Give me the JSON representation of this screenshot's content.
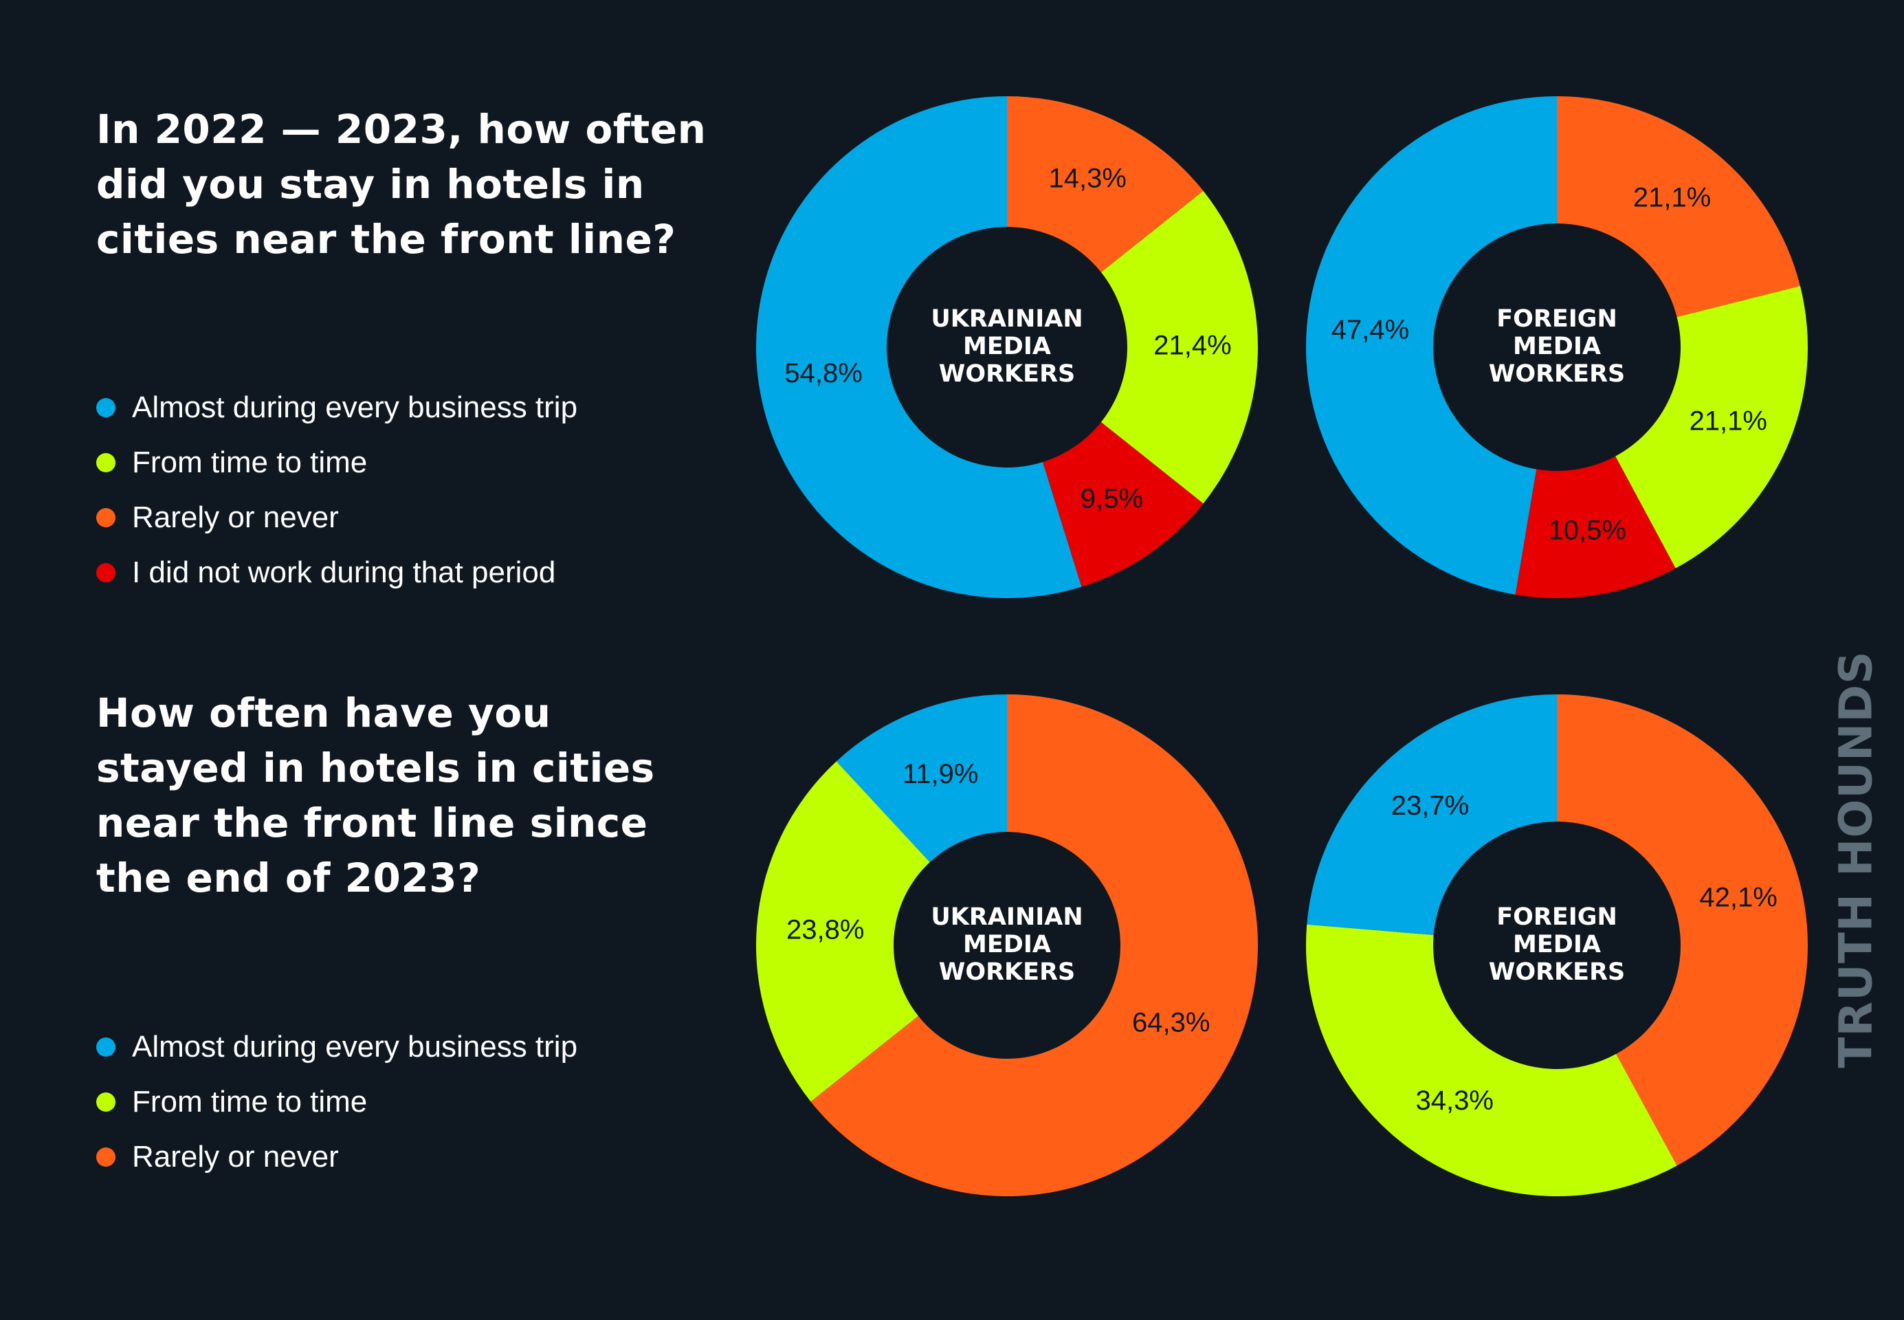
{
  "questions": [
    "In 2022 — 2023, how often did you stay in hotels in cities near the front line?",
    "How often have you stayed in hotels in cities near the front line since the end of 2023?"
  ],
  "legends": [
    [
      {
        "label": "Almost during every business trip",
        "color": "#00a8e6"
      },
      {
        "label": "From time to time",
        "color": "#bfff00"
      },
      {
        "label": "Rarely or never",
        "color": "#ff5f17"
      },
      {
        "label": "I did not work during that period",
        "color": "#e60000"
      }
    ],
    [
      {
        "label": "Almost during every business trip",
        "color": "#00a8e6"
      },
      {
        "label": "From time to time",
        "color": "#bfff00"
      },
      {
        "label": "Rarely or never",
        "color": "#ff5f17"
      }
    ]
  ],
  "brand": "TRUTH HOUNDS",
  "chart_data": [
    {
      "type": "pie",
      "donut": true,
      "center_label": [
        "UKRAINIAN",
        "MEDIA",
        "WORKERS"
      ],
      "slices": [
        {
          "category": "Rarely or never",
          "value": 14.3,
          "label": "14,3%",
          "color": "#ff5f17"
        },
        {
          "category": "From time to time",
          "value": 21.4,
          "label": "21,4%",
          "color": "#bfff00"
        },
        {
          "category": "I did not work during that period",
          "value": 9.5,
          "label": "9,5%",
          "color": "#e60000"
        },
        {
          "category": "Almost during every business trip",
          "value": 54.8,
          "label": "54,8%",
          "color": "#00a8e6"
        }
      ]
    },
    {
      "type": "pie",
      "donut": true,
      "center_label": [
        "FOREIGN",
        "MEDIA",
        "WORKERS"
      ],
      "slices": [
        {
          "category": "Rarely or never",
          "value": 21.1,
          "label": "21,1%",
          "color": "#ff5f17"
        },
        {
          "category": "From time to time",
          "value": 21.1,
          "label": "21,1%",
          "color": "#bfff00"
        },
        {
          "category": "I did not work during that period",
          "value": 10.5,
          "label": "10,5%",
          "color": "#e60000"
        },
        {
          "category": "Almost during every business trip",
          "value": 47.4,
          "label": "47,4%",
          "color": "#00a8e6"
        }
      ]
    },
    {
      "type": "pie",
      "donut": true,
      "center_label": [
        "UKRAINIAN",
        "MEDIA",
        "WORKERS"
      ],
      "slices": [
        {
          "category": "Rarely or never",
          "value": 64.3,
          "label": "64,3%",
          "color": "#ff5f17"
        },
        {
          "category": "From time to time",
          "value": 23.8,
          "label": "23,8%",
          "color": "#bfff00"
        },
        {
          "category": "Almost during every business trip",
          "value": 11.9,
          "label": "11,9%",
          "color": "#00a8e6"
        }
      ]
    },
    {
      "type": "pie",
      "donut": true,
      "center_label": [
        "FOREIGN",
        "MEDIA",
        "WORKERS"
      ],
      "slices": [
        {
          "category": "Rarely or never",
          "value": 42.1,
          "label": "42,1%",
          "color": "#ff5f17"
        },
        {
          "category": "From time to time",
          "value": 34.3,
          "label": "34,3%",
          "color": "#bfff00"
        },
        {
          "category": "Almost during every business trip",
          "value": 23.7,
          "label": "23,7%",
          "color": "#00a8e6"
        }
      ]
    }
  ]
}
